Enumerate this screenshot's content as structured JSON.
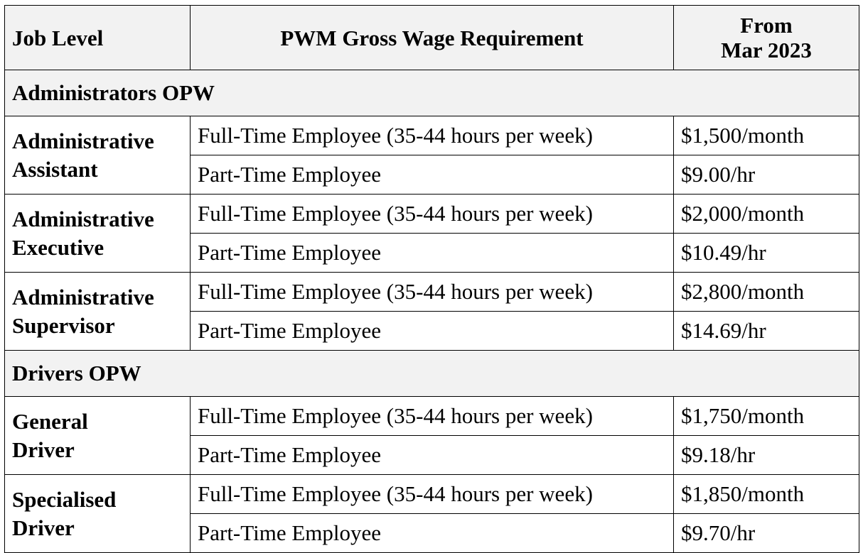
{
  "header": {
    "job_level": "Job Level",
    "requirement": "PWM Gross Wage Requirement",
    "from_line1": "From",
    "from_line2": "Mar 2023"
  },
  "sections": [
    {
      "title": "Administrators OPW",
      "levels": [
        {
          "name_line1": "Administrative",
          "name_line2": "Assistant",
          "full_time_label": "Full-Time Employee (35-44 hours per week)",
          "full_time_value": "$1,500/month",
          "part_time_label": "Part-Time Employee",
          "part_time_value": "$9.00/hr"
        },
        {
          "name_line1": "Administrative",
          "name_line2": "Executive",
          "full_time_label": "Full-Time Employee (35-44 hours per week)",
          "full_time_value": "$2,000/month",
          "part_time_label": "Part-Time Employee",
          "part_time_value": "$10.49/hr"
        },
        {
          "name_line1": "Administrative",
          "name_line2": "Supervisor",
          "full_time_label": "Full-Time Employee (35-44 hours per week)",
          "full_time_value": "$2,800/month",
          "part_time_label": "Part-Time Employee",
          "part_time_value": "$14.69/hr"
        }
      ]
    },
    {
      "title": "Drivers OPW",
      "levels": [
        {
          "name_line1": "General",
          "name_line2": "Driver",
          "full_time_label": "Full-Time Employee (35-44 hours per week)",
          "full_time_value": "$1,750/month",
          "part_time_label": "Part-Time Employee",
          "part_time_value": "$9.18/hr"
        },
        {
          "name_line1": "Specialised",
          "name_line2": "Driver",
          "full_time_label": "Full-Time Employee (35-44 hours per week)",
          "full_time_value": "$1,850/month",
          "part_time_label": "Part-Time Employee",
          "part_time_value": "$9.70/hr"
        }
      ]
    }
  ]
}
